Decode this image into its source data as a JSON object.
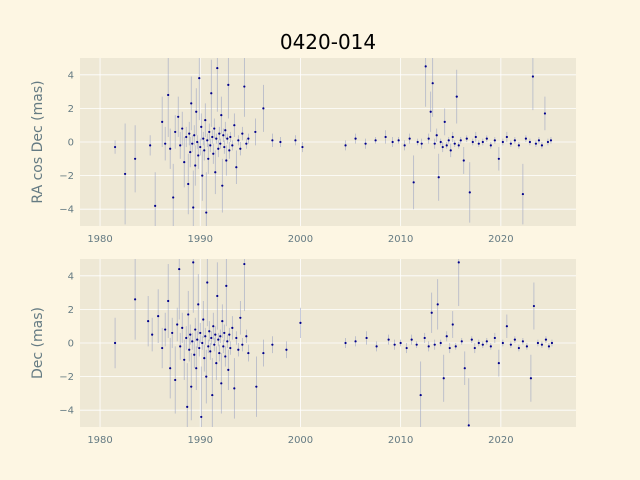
{
  "title": "0420-014",
  "colors": {
    "figure_bg": "#fdf6e3",
    "axes_bg": "#eee8d5",
    "grid": "#ffffff",
    "marker": "#00008b",
    "errorbar": "#8d99c0",
    "tick_text": "#657b83"
  },
  "chart_data": [
    {
      "type": "scatter",
      "ylabel": "RA cos Dec (mas)",
      "xlabel": "",
      "xlim": [
        1978,
        2027.5
      ],
      "ylim": [
        -5,
        5
      ],
      "xticks": [
        1980,
        1990,
        2000,
        2010,
        2020
      ],
      "yticks": [
        -4,
        -2,
        0,
        2,
        4
      ],
      "grid": true,
      "points": [
        [
          1981.5,
          -0.3,
          0.4
        ],
        [
          1982.5,
          -1.9,
          3.0
        ],
        [
          1983.5,
          -1.0,
          2.0
        ],
        [
          1985.0,
          -0.2,
          0.6
        ],
        [
          1985.5,
          -3.8,
          2.0
        ],
        [
          1986.2,
          1.2,
          1.5
        ],
        [
          1986.5,
          -0.1,
          1.0
        ],
        [
          1986.8,
          2.8,
          2.5
        ],
        [
          1987.0,
          -0.4,
          1.2
        ],
        [
          1987.3,
          -3.3,
          2.0
        ],
        [
          1987.5,
          0.6,
          1.0
        ],
        [
          1987.8,
          1.5,
          1.2
        ],
        [
          1988.0,
          -0.2,
          0.8
        ],
        [
          1988.2,
          0.8,
          1.0
        ],
        [
          1988.4,
          -1.2,
          1.5
        ],
        [
          1988.6,
          0.3,
          0.6
        ],
        [
          1988.8,
          -2.5,
          1.8
        ],
        [
          1988.9,
          0.5,
          0.7
        ],
        [
          1989.0,
          -0.6,
          0.9
        ],
        [
          1989.1,
          2.3,
          1.6
        ],
        [
          1989.2,
          -0.1,
          0.5
        ],
        [
          1989.3,
          -3.9,
          2.2
        ],
        [
          1989.4,
          0.4,
          0.6
        ],
        [
          1989.5,
          -1.4,
          1.2
        ],
        [
          1989.6,
          1.8,
          1.4
        ],
        [
          1989.7,
          0.0,
          0.4
        ],
        [
          1989.8,
          -0.8,
          0.8
        ],
        [
          1989.9,
          3.8,
          2.5
        ],
        [
          1990.0,
          -0.3,
          0.5
        ],
        [
          1990.1,
          0.9,
          0.8
        ],
        [
          1990.2,
          -2.0,
          1.5
        ],
        [
          1990.3,
          0.2,
          0.4
        ],
        [
          1990.4,
          -0.5,
          0.6
        ],
        [
          1990.5,
          1.3,
          1.0
        ],
        [
          1990.6,
          -4.2,
          2.4
        ],
        [
          1990.7,
          0.1,
          0.4
        ],
        [
          1990.8,
          -1.0,
          0.9
        ],
        [
          1990.9,
          0.6,
          0.5
        ],
        [
          1991.0,
          -0.2,
          0.4
        ],
        [
          1991.1,
          2.9,
          2.0
        ],
        [
          1991.2,
          0.3,
          0.4
        ],
        [
          1991.3,
          -0.7,
          0.6
        ],
        [
          1991.4,
          0.8,
          0.6
        ],
        [
          1991.5,
          -1.8,
          1.3
        ],
        [
          1991.6,
          0.2,
          0.3
        ],
        [
          1991.7,
          4.4,
          2.6
        ],
        [
          1991.8,
          -0.4,
          0.5
        ],
        [
          1991.9,
          0.5,
          0.4
        ],
        [
          1992.0,
          -0.1,
          0.3
        ],
        [
          1992.1,
          1.6,
          1.1
        ],
        [
          1992.2,
          -2.6,
          1.6
        ],
        [
          1992.3,
          0.4,
          0.4
        ],
        [
          1992.4,
          -0.3,
          0.4
        ],
        [
          1992.5,
          0.7,
          0.5
        ],
        [
          1992.6,
          -1.1,
          0.9
        ],
        [
          1992.7,
          0.2,
          0.3
        ],
        [
          1992.8,
          3.4,
          2.0
        ],
        [
          1992.9,
          -0.5,
          0.5
        ],
        [
          1993.0,
          0.3,
          0.3
        ],
        [
          1993.2,
          -0.2,
          0.3
        ],
        [
          1993.4,
          1.0,
          0.7
        ],
        [
          1993.6,
          -1.5,
          1.0
        ],
        [
          1993.8,
          0.1,
          0.3
        ],
        [
          1994.0,
          -0.4,
          0.4
        ],
        [
          1994.2,
          0.5,
          0.4
        ],
        [
          1994.4,
          3.3,
          1.8
        ],
        [
          1994.6,
          -0.1,
          0.3
        ],
        [
          1994.8,
          0.2,
          0.3
        ],
        [
          1995.5,
          0.6,
          0.8
        ],
        [
          1996.3,
          2.0,
          1.4
        ],
        [
          1997.2,
          0.1,
          0.4
        ],
        [
          1998.0,
          0.0,
          0.3
        ],
        [
          1999.5,
          0.1,
          0.3
        ],
        [
          2000.2,
          -0.3,
          0.3
        ],
        [
          2004.5,
          -0.2,
          0.3
        ],
        [
          2005.5,
          0.2,
          0.3
        ],
        [
          2006.5,
          -0.1,
          0.3
        ],
        [
          2007.5,
          0.1,
          0.2
        ],
        [
          2008.5,
          0.3,
          0.4
        ],
        [
          2009.2,
          0.0,
          0.3
        ],
        [
          2009.8,
          0.1,
          0.2
        ],
        [
          2010.4,
          -0.2,
          0.3
        ],
        [
          2010.9,
          0.2,
          0.3
        ],
        [
          2011.3,
          -2.4,
          1.6
        ],
        [
          2011.7,
          0.0,
          0.2
        ],
        [
          2012.1,
          -0.1,
          0.3
        ],
        [
          2012.5,
          4.5,
          2.4
        ],
        [
          2012.8,
          0.2,
          0.3
        ],
        [
          2013.0,
          1.8,
          1.2
        ],
        [
          2013.2,
          3.5,
          2.0
        ],
        [
          2013.4,
          -0.1,
          0.3
        ],
        [
          2013.6,
          0.4,
          0.4
        ],
        [
          2013.8,
          -2.1,
          1.4
        ],
        [
          2014.0,
          0.0,
          0.2
        ],
        [
          2014.2,
          -0.3,
          0.3
        ],
        [
          2014.4,
          1.2,
          0.8
        ],
        [
          2014.6,
          -0.2,
          0.2
        ],
        [
          2014.8,
          0.1,
          0.2
        ],
        [
          2015.0,
          -0.5,
          0.4
        ],
        [
          2015.2,
          0.3,
          0.3
        ],
        [
          2015.4,
          -0.1,
          0.2
        ],
        [
          2015.6,
          2.7,
          1.6
        ],
        [
          2015.8,
          -0.2,
          0.2
        ],
        [
          2016.0,
          0.1,
          0.2
        ],
        [
          2016.3,
          -1.1,
          0.8
        ],
        [
          2016.6,
          0.2,
          0.2
        ],
        [
          2016.9,
          -3.0,
          1.8
        ],
        [
          2017.2,
          0.0,
          0.2
        ],
        [
          2017.5,
          0.3,
          0.3
        ],
        [
          2017.8,
          -0.1,
          0.2
        ],
        [
          2018.2,
          0.0,
          0.2
        ],
        [
          2018.6,
          0.2,
          0.2
        ],
        [
          2019.0,
          -0.2,
          0.2
        ],
        [
          2019.4,
          0.1,
          0.2
        ],
        [
          2019.8,
          -1.0,
          0.7
        ],
        [
          2020.2,
          0.0,
          0.2
        ],
        [
          2020.6,
          0.3,
          0.3
        ],
        [
          2021.0,
          -0.1,
          0.2
        ],
        [
          2021.4,
          0.1,
          0.2
        ],
        [
          2021.8,
          -0.2,
          0.2
        ],
        [
          2022.2,
          -3.1,
          1.8
        ],
        [
          2022.5,
          0.2,
          0.2
        ],
        [
          2022.9,
          0.0,
          0.2
        ],
        [
          2023.2,
          3.9,
          2.0
        ],
        [
          2023.5,
          -0.1,
          0.2
        ],
        [
          2023.8,
          0.1,
          0.2
        ],
        [
          2024.1,
          -0.2,
          0.2
        ],
        [
          2024.4,
          1.7,
          1.0
        ],
        [
          2024.7,
          0.0,
          0.2
        ],
        [
          2025.0,
          0.1,
          0.2
        ]
      ]
    },
    {
      "type": "scatter",
      "ylabel": "Dec (mas)",
      "xlabel": "",
      "xlim": [
        1978,
        2027.5
      ],
      "ylim": [
        -5,
        5
      ],
      "xticks": [
        1980,
        1990,
        2000,
        2010,
        2020
      ],
      "yticks": [
        -4,
        -2,
        0,
        2,
        4
      ],
      "grid": true,
      "points": [
        [
          1981.5,
          0.0,
          1.5
        ],
        [
          1983.5,
          2.6,
          2.4
        ],
        [
          1984.8,
          1.3,
          1.5
        ],
        [
          1985.2,
          0.5,
          1.0
        ],
        [
          1985.8,
          1.6,
          1.6
        ],
        [
          1986.2,
          -0.3,
          1.2
        ],
        [
          1986.5,
          0.8,
          1.0
        ],
        [
          1986.8,
          2.5,
          2.2
        ],
        [
          1987.0,
          -1.5,
          1.8
        ],
        [
          1987.2,
          0.6,
          0.9
        ],
        [
          1987.5,
          -2.2,
          2.0
        ],
        [
          1987.7,
          1.1,
          1.0
        ],
        [
          1987.9,
          4.4,
          3.0
        ],
        [
          1988.0,
          -0.2,
          0.8
        ],
        [
          1988.2,
          0.9,
          0.9
        ],
        [
          1988.4,
          -1.0,
          1.2
        ],
        [
          1988.6,
          0.3,
          0.7
        ],
        [
          1988.7,
          -3.8,
          2.6
        ],
        [
          1988.8,
          1.7,
          1.4
        ],
        [
          1988.9,
          -0.4,
          0.7
        ],
        [
          1989.0,
          0.5,
          0.6
        ],
        [
          1989.1,
          -2.6,
          2.0
        ],
        [
          1989.2,
          0.1,
          0.5
        ],
        [
          1989.3,
          4.8,
          3.0
        ],
        [
          1989.4,
          -0.7,
          0.8
        ],
        [
          1989.5,
          0.8,
          0.7
        ],
        [
          1989.6,
          -1.5,
          1.3
        ],
        [
          1989.7,
          0.2,
          0.5
        ],
        [
          1989.8,
          2.3,
          1.8
        ],
        [
          1989.9,
          -0.3,
          0.5
        ],
        [
          1990.0,
          0.6,
          0.6
        ],
        [
          1990.1,
          -4.4,
          3.0
        ],
        [
          1990.2,
          0.0,
          0.4
        ],
        [
          1990.3,
          1.4,
          1.1
        ],
        [
          1990.4,
          -0.9,
          0.8
        ],
        [
          1990.5,
          0.4,
          0.5
        ],
        [
          1990.6,
          -2.0,
          1.6
        ],
        [
          1990.7,
          3.6,
          2.6
        ],
        [
          1990.8,
          -0.2,
          0.4
        ],
        [
          1990.9,
          0.7,
          0.6
        ],
        [
          1991.0,
          -0.5,
          0.5
        ],
        [
          1991.1,
          0.3,
          0.4
        ],
        [
          1991.2,
          -3.1,
          2.2
        ],
        [
          1991.3,
          1.0,
          0.8
        ],
        [
          1991.4,
          -0.1,
          0.4
        ],
        [
          1991.5,
          0.5,
          0.5
        ],
        [
          1991.6,
          -1.2,
          1.0
        ],
        [
          1991.7,
          2.8,
          2.0
        ],
        [
          1991.8,
          0.2,
          0.4
        ],
        [
          1991.9,
          -0.6,
          0.5
        ],
        [
          1992.0,
          0.4,
          0.4
        ],
        [
          1992.1,
          -2.4,
          1.8
        ],
        [
          1992.2,
          1.3,
          1.0
        ],
        [
          1992.3,
          -0.2,
          0.4
        ],
        [
          1992.4,
          0.6,
          0.5
        ],
        [
          1992.5,
          -0.8,
          0.6
        ],
        [
          1992.6,
          3.4,
          2.4
        ],
        [
          1992.7,
          0.1,
          0.4
        ],
        [
          1992.8,
          -1.6,
          1.2
        ],
        [
          1992.9,
          0.5,
          0.4
        ],
        [
          1993.0,
          -0.3,
          0.4
        ],
        [
          1993.2,
          0.9,
          0.7
        ],
        [
          1993.4,
          -2.7,
          1.8
        ],
        [
          1993.6,
          0.3,
          0.4
        ],
        [
          1993.8,
          -0.4,
          0.4
        ],
        [
          1994.0,
          1.5,
          1.0
        ],
        [
          1994.2,
          -0.1,
          0.4
        ],
        [
          1994.4,
          4.7,
          2.8
        ],
        [
          1994.6,
          0.4,
          0.4
        ],
        [
          1994.8,
          -0.6,
          0.5
        ],
        [
          1995.6,
          -2.6,
          1.8
        ],
        [
          1996.3,
          -0.6,
          0.8
        ],
        [
          1997.2,
          -0.1,
          0.5
        ],
        [
          1998.6,
          -0.4,
          0.5
        ],
        [
          2000.0,
          1.2,
          0.9
        ],
        [
          2004.5,
          0.0,
          0.3
        ],
        [
          2005.5,
          0.1,
          0.3
        ],
        [
          2006.6,
          0.3,
          0.4
        ],
        [
          2007.6,
          -0.2,
          0.3
        ],
        [
          2008.8,
          0.2,
          0.3
        ],
        [
          2009.4,
          -0.1,
          0.3
        ],
        [
          2010.0,
          0.0,
          0.2
        ],
        [
          2010.6,
          -0.3,
          0.3
        ],
        [
          2011.1,
          0.2,
          0.3
        ],
        [
          2011.6,
          -0.1,
          0.2
        ],
        [
          2012.0,
          -3.1,
          2.0
        ],
        [
          2012.4,
          0.3,
          0.3
        ],
        [
          2012.8,
          -0.2,
          0.3
        ],
        [
          2013.1,
          1.8,
          1.2
        ],
        [
          2013.4,
          -0.1,
          0.3
        ],
        [
          2013.7,
          2.3,
          1.5
        ],
        [
          2014.0,
          0.0,
          0.2
        ],
        [
          2014.3,
          -2.1,
          1.4
        ],
        [
          2014.6,
          0.4,
          0.3
        ],
        [
          2014.9,
          -0.3,
          0.3
        ],
        [
          2015.2,
          1.1,
          0.8
        ],
        [
          2015.5,
          -0.2,
          0.2
        ],
        [
          2015.8,
          4.8,
          2.6
        ],
        [
          2016.1,
          0.1,
          0.2
        ],
        [
          2016.4,
          -1.5,
          1.0
        ],
        [
          2016.8,
          -4.9,
          2.8
        ],
        [
          2017.1,
          0.2,
          0.2
        ],
        [
          2017.4,
          -0.3,
          0.3
        ],
        [
          2017.8,
          0.0,
          0.2
        ],
        [
          2018.2,
          -0.1,
          0.2
        ],
        [
          2018.6,
          0.1,
          0.2
        ],
        [
          2019.0,
          -0.2,
          0.2
        ],
        [
          2019.4,
          0.3,
          0.3
        ],
        [
          2019.8,
          -1.2,
          0.8
        ],
        [
          2020.2,
          0.0,
          0.2
        ],
        [
          2020.6,
          1.0,
          0.7
        ],
        [
          2021.0,
          -0.1,
          0.2
        ],
        [
          2021.4,
          0.2,
          0.2
        ],
        [
          2021.8,
          -0.3,
          0.2
        ],
        [
          2022.2,
          0.1,
          0.2
        ],
        [
          2022.6,
          -0.2,
          0.2
        ],
        [
          2023.0,
          -2.1,
          1.4
        ],
        [
          2023.3,
          2.2,
          1.4
        ],
        [
          2023.7,
          0.0,
          0.2
        ],
        [
          2024.1,
          -0.1,
          0.2
        ],
        [
          2024.5,
          0.2,
          0.2
        ],
        [
          2024.8,
          -0.2,
          0.2
        ],
        [
          2025.1,
          0.0,
          0.2
        ]
      ]
    }
  ]
}
